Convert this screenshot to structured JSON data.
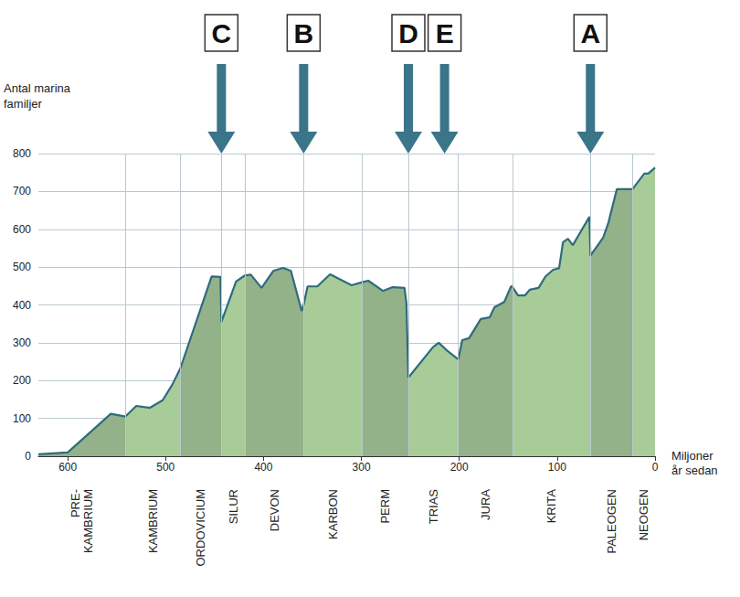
{
  "chart_data": {
    "type": "area",
    "ylabel": "Antal marina familjer",
    "xlabel": "Miljoner år sedan",
    "x": [
      630,
      600,
      556,
      541,
      530,
      516,
      503,
      493,
      485,
      453,
      444,
      443,
      428,
      419,
      413,
      402,
      390,
      380,
      372,
      361,
      359,
      355,
      345,
      332,
      310,
      299,
      293,
      278,
      268,
      256,
      254,
      252,
      227,
      221,
      212,
      201,
      197,
      190,
      178,
      169,
      164,
      154,
      147,
      145,
      140,
      133,
      128,
      119,
      112,
      104,
      98,
      94,
      89,
      84,
      67,
      66,
      53,
      48,
      39,
      23,
      11,
      7,
      0
    ],
    "values": [
      5,
      10,
      112,
      105,
      133,
      128,
      148,
      190,
      232,
      475,
      474,
      355,
      462,
      478,
      480,
      445,
      490,
      498,
      490,
      384,
      400,
      449,
      449,
      481,
      452,
      460,
      464,
      437,
      447,
      445,
      405,
      208,
      288,
      300,
      278,
      256,
      307,
      312,
      363,
      367,
      394,
      408,
      450,
      445,
      425,
      425,
      440,
      445,
      475,
      493,
      497,
      566,
      575,
      558,
      633,
      530,
      578,
      614,
      706,
      706,
      747,
      747,
      763
    ],
    "color": "#2f6b7e",
    "xlim": [
      630,
      0
    ],
    "xticks": [
      600,
      500,
      400,
      300,
      200,
      100,
      0
    ],
    "ylim": [
      0,
      800
    ],
    "yticks": [
      0,
      100,
      200,
      300,
      400,
      500,
      600,
      700,
      800
    ],
    "grid": true,
    "periods": [
      {
        "name": "PRE-KAMBRIUM",
        "start": 630,
        "end": 541,
        "color": "#93b289"
      },
      {
        "name": "KAMBRIUM",
        "start": 541,
        "end": 485,
        "color": "#a8cc98"
      },
      {
        "name": "ORDOVICIUM",
        "start": 485,
        "end": 443,
        "color": "#93b289"
      },
      {
        "name": "SILUR",
        "start": 443,
        "end": 419,
        "color": "#a8cc98"
      },
      {
        "name": "DEVON",
        "start": 419,
        "end": 359,
        "color": "#93b289"
      },
      {
        "name": "KARBON",
        "start": 359,
        "end": 299,
        "color": "#a8cc98"
      },
      {
        "name": "PERM",
        "start": 299,
        "end": 252,
        "color": "#93b289"
      },
      {
        "name": "TRIAS",
        "start": 252,
        "end": 201,
        "color": "#a8cc98"
      },
      {
        "name": "JURA",
        "start": 201,
        "end": 145,
        "color": "#93b289"
      },
      {
        "name": "KRITA",
        "start": 145,
        "end": 66,
        "color": "#a8cc98"
      },
      {
        "name": "PALEOGEN",
        "start": 66,
        "end": 23,
        "color": "#93b289"
      },
      {
        "name": "NEOGEN",
        "start": 23,
        "end": 0,
        "color": "#a8cc98"
      }
    ],
    "events": [
      {
        "label": "C",
        "x": 443
      },
      {
        "label": "B",
        "x": 359
      },
      {
        "label": "D",
        "x": 252
      },
      {
        "label": "E",
        "x": 215
      },
      {
        "label": "A",
        "x": 66
      }
    ]
  }
}
